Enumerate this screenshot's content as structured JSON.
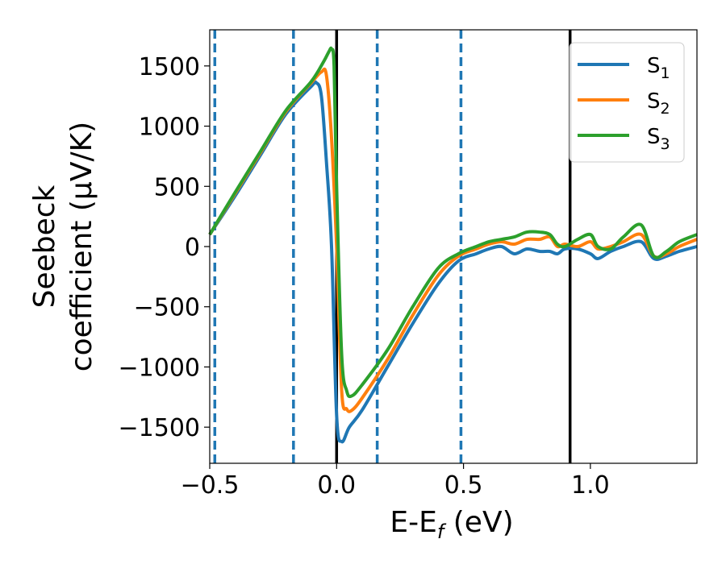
{
  "chart_data": {
    "type": "line",
    "xlabel": "E-E",
    "xlabel_sub": "f",
    "xlabel_unit": " (eV)",
    "ylabel_line1": "Seebeck",
    "ylabel_line2": "coefficient  (μV/K)",
    "xlim": [
      -0.5,
      1.42
    ],
    "ylim": [
      -1800,
      1800
    ],
    "x_ticks": [
      -0.5,
      0.0,
      0.5,
      1.0
    ],
    "x_tick_labels": [
      "−0.5",
      "0.0",
      "0.5",
      "1.0"
    ],
    "y_ticks": [
      -1500,
      -1000,
      -500,
      0,
      500,
      1000,
      1500
    ],
    "y_tick_labels": [
      "−1500",
      "−1000",
      "−500",
      "0",
      "500",
      "1000",
      "1500"
    ],
    "legend_position": "top-right",
    "grid": false,
    "vlines_solid": [
      0.0,
      0.92
    ],
    "vlines_dashed": [
      -0.48,
      -0.17,
      0.16,
      0.49
    ],
    "vline_solid_color": "#000000",
    "vline_dashed_color": "#1f77b4",
    "series": [
      {
        "name": "S",
        "sub": "1",
        "color": "#1f77b4",
        "x": [
          -0.5,
          -0.4,
          -0.3,
          -0.2,
          -0.1,
          -0.08,
          -0.06,
          -0.04,
          -0.02,
          0.0,
          0.02,
          0.05,
          0.1,
          0.2,
          0.3,
          0.4,
          0.48,
          0.55,
          0.6,
          0.65,
          0.7,
          0.75,
          0.8,
          0.84,
          0.87,
          0.9,
          0.95,
          1.0,
          1.03,
          1.08,
          1.13,
          1.2,
          1.25,
          1.3,
          1.35,
          1.42
        ],
        "y": [
          100,
          420,
          760,
          1100,
          1330,
          1360,
          1250,
          700,
          0,
          -1400,
          -1620,
          -1500,
          -1360,
          -1000,
          -640,
          -310,
          -120,
          -60,
          -20,
          0,
          -60,
          -20,
          -40,
          -40,
          -60,
          -20,
          -20,
          -60,
          -100,
          -40,
          0,
          40,
          -100,
          -80,
          -40,
          0
        ]
      },
      {
        "name": "S",
        "sub": "2",
        "color": "#ff7f0e",
        "x": [
          -0.5,
          -0.4,
          -0.3,
          -0.2,
          -0.1,
          -0.06,
          -0.04,
          -0.02,
          0.0,
          0.02,
          0.04,
          0.06,
          0.1,
          0.2,
          0.3,
          0.4,
          0.48,
          0.55,
          0.6,
          0.65,
          0.7,
          0.75,
          0.8,
          0.84,
          0.87,
          0.9,
          0.95,
          1.0,
          1.03,
          1.08,
          1.13,
          1.2,
          1.25,
          1.3,
          1.35,
          1.42
        ],
        "y": [
          100,
          440,
          780,
          1120,
          1360,
          1450,
          1420,
          900,
          0,
          -1200,
          -1350,
          -1360,
          -1260,
          -940,
          -570,
          -240,
          -80,
          -20,
          20,
          40,
          20,
          60,
          60,
          80,
          0,
          20,
          0,
          40,
          -20,
          0,
          40,
          100,
          -80,
          -60,
          0,
          60
        ]
      },
      {
        "name": "S",
        "sub": "3",
        "color": "#2ca02c",
        "x": [
          -0.5,
          -0.4,
          -0.3,
          -0.2,
          -0.1,
          -0.05,
          -0.03,
          -0.02,
          -0.01,
          0.0,
          0.02,
          0.04,
          0.06,
          0.1,
          0.2,
          0.3,
          0.4,
          0.48,
          0.55,
          0.6,
          0.65,
          0.7,
          0.75,
          0.8,
          0.84,
          0.87,
          0.9,
          0.95,
          1.0,
          1.03,
          1.08,
          1.13,
          1.2,
          1.25,
          1.3,
          1.35,
          1.42
        ],
        "y": [
          100,
          450,
          790,
          1130,
          1370,
          1540,
          1620,
          1640,
          1500,
          500,
          -900,
          -1200,
          -1240,
          -1150,
          -860,
          -500,
          -180,
          -60,
          0,
          40,
          60,
          80,
          120,
          120,
          100,
          20,
          0,
          60,
          100,
          0,
          -20,
          80,
          180,
          -80,
          -40,
          40,
          100
        ]
      }
    ]
  }
}
